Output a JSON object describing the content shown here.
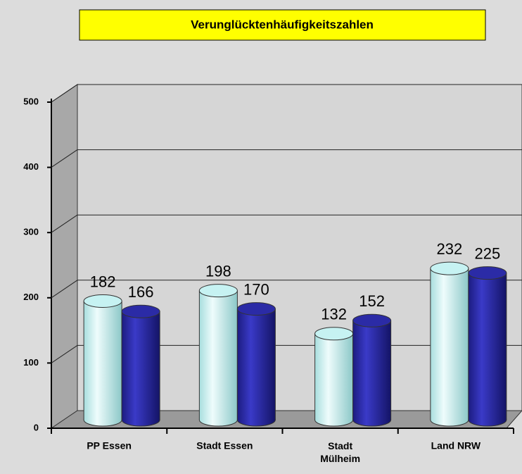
{
  "chart_data": {
    "type": "bar",
    "title": "Verunglücktenhäufigkeitszahlen",
    "categories": [
      "PP Essen",
      "Stadt Essen",
      [
        "Stadt",
        "Mülheim"
      ],
      "Land NRW"
    ],
    "series": [
      {
        "color": "#c6f2f2",
        "values": [
          182,
          198,
          132,
          232
        ]
      },
      {
        "color": "#2b2ba6",
        "values": [
          166,
          170,
          152,
          225
        ]
      }
    ],
    "ylim": [
      0,
      500
    ],
    "yticks": [
      0,
      100,
      200,
      300,
      400,
      500
    ],
    "grid": true
  }
}
